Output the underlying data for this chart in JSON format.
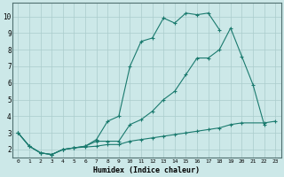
{
  "xlabel": "Humidex (Indice chaleur)",
  "background_color": "#cce8e8",
  "grid_color": "#aacccc",
  "line_color": "#1a7a6e",
  "xlim": [
    -0.5,
    23.5
  ],
  "ylim": [
    1.5,
    10.8
  ],
  "yticks": [
    2,
    3,
    4,
    5,
    6,
    7,
    8,
    9,
    10
  ],
  "xticks": [
    0,
    1,
    2,
    3,
    4,
    5,
    6,
    7,
    8,
    9,
    10,
    11,
    12,
    13,
    14,
    15,
    16,
    17,
    18,
    19,
    20,
    21,
    22,
    23
  ],
  "series1_x": [
    0,
    1,
    2,
    3,
    4,
    5,
    6,
    7,
    8,
    9,
    10,
    11,
    12,
    13,
    14,
    15,
    16,
    17,
    18,
    19,
    20,
    21,
    22
  ],
  "series1_y": [
    3.0,
    2.2,
    1.8,
    1.7,
    2.0,
    2.1,
    2.2,
    2.5,
    2.5,
    2.5,
    3.5,
    3.8,
    4.3,
    5.0,
    5.5,
    6.5,
    7.5,
    7.5,
    8.0,
    9.3,
    7.6,
    5.9,
    3.5
  ],
  "series2_x": [
    0,
    1,
    2,
    3,
    4,
    5,
    6,
    7,
    8,
    9,
    10,
    11,
    12,
    13,
    14,
    15,
    16,
    17,
    18
  ],
  "series2_y": [
    3.0,
    2.2,
    1.8,
    1.7,
    2.0,
    2.1,
    2.2,
    2.6,
    3.7,
    4.0,
    7.0,
    8.5,
    8.7,
    9.9,
    9.6,
    10.2,
    10.1,
    10.2,
    9.2
  ],
  "series3_x": [
    0,
    1,
    2,
    3,
    4,
    5,
    6,
    7,
    8,
    9,
    10,
    11,
    12,
    13,
    14,
    15,
    16,
    17,
    18,
    19,
    20,
    22,
    23
  ],
  "series3_y": [
    3.0,
    2.2,
    1.8,
    1.7,
    2.0,
    2.1,
    2.15,
    2.2,
    2.3,
    2.3,
    2.5,
    2.6,
    2.7,
    2.8,
    2.9,
    3.0,
    3.1,
    3.2,
    3.3,
    3.5,
    3.6,
    3.6,
    3.7
  ]
}
